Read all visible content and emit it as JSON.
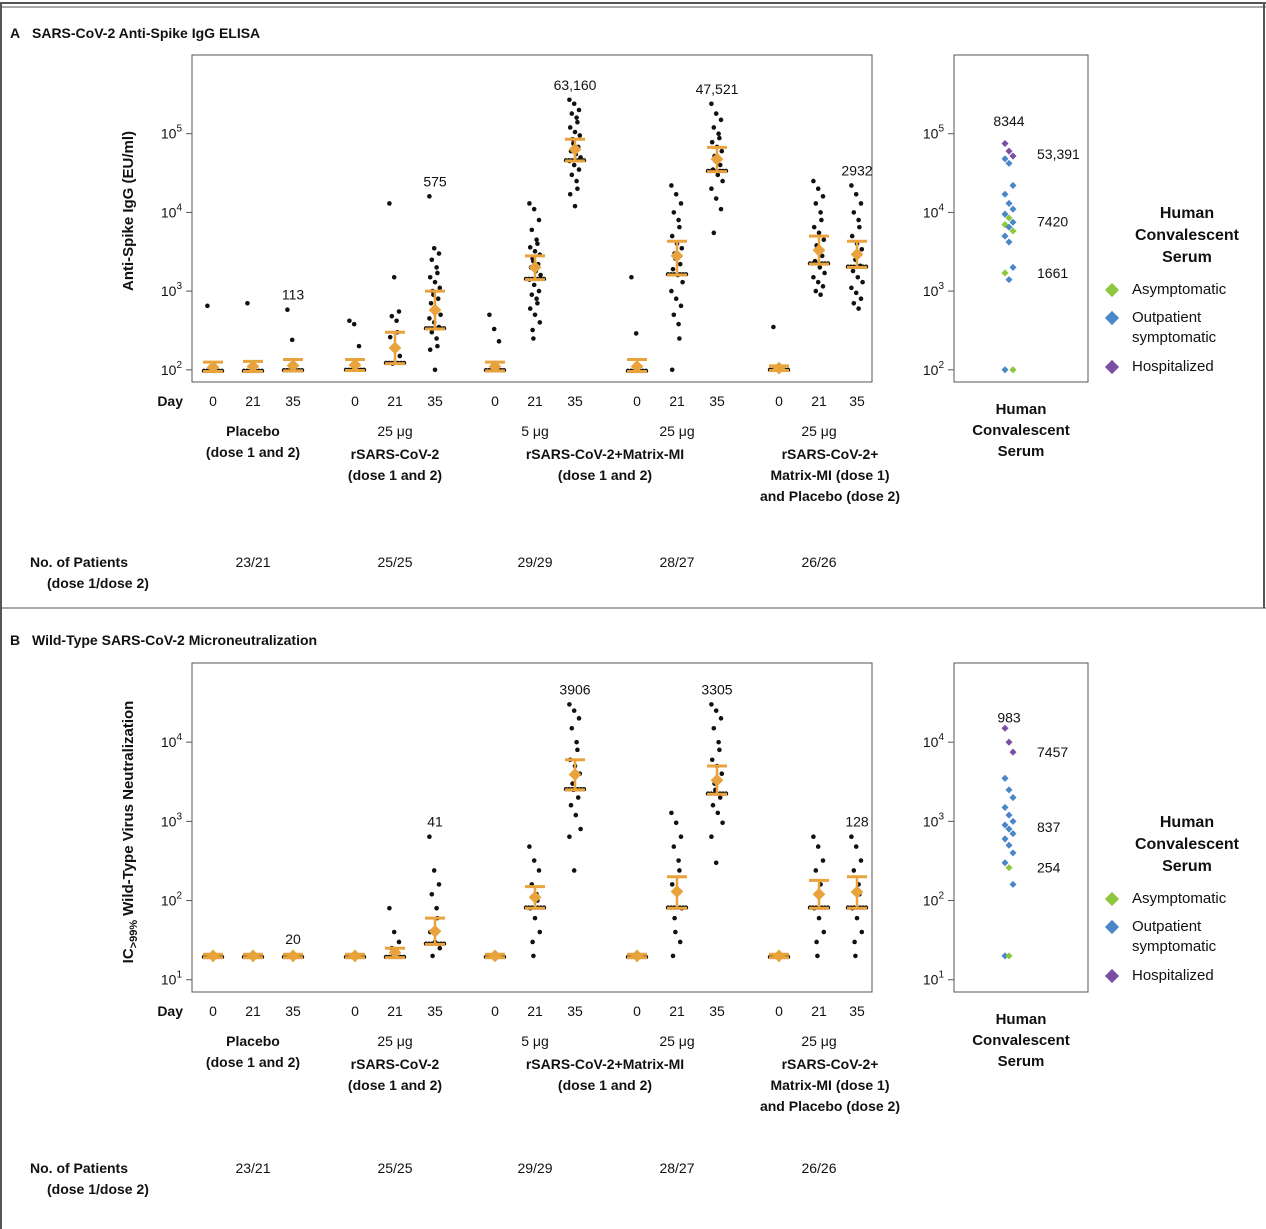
{
  "panels": {
    "A": {
      "letter": "A",
      "title": "SARS-CoV-2 Anti-Spike IgG ELISA",
      "ylabel": "Anti-Spike IgG (EU/ml)"
    },
    "B": {
      "letter": "B",
      "title": "Wild-Type SARS-CoV-2 Microneutralization",
      "ylabel_main": "Wild-Type Virus Neutralization",
      "ylabel_prefix": "IC",
      "ylabel_sub": ">99%"
    }
  },
  "common": {
    "day_label": "Day",
    "patients_label_1": "No. of Patients",
    "patients_label_2": "(dose 1/dose 2)",
    "groups": [
      {
        "dose": "",
        "name": [
          "Placebo",
          "(dose 1 and 2)"
        ],
        "patients": "23/21"
      },
      {
        "dose": "25 μg",
        "name": [
          "rSARS-CoV-2",
          "(dose 1 and 2)"
        ],
        "patients": "25/25"
      },
      {
        "dose": "5 μg",
        "name": [
          "rSARS-CoV-2+Matrix-MI",
          "(dose 1 and 2)"
        ],
        "patients": "29/29"
      },
      {
        "dose": "25 μg",
        "name": [
          "",
          ""
        ],
        "patients": "28/27"
      },
      {
        "dose": "25 μg",
        "name": [
          "rSARS-CoV-2+",
          "Matrix-MI (dose 1)",
          "and Placebo (dose 2)"
        ],
        "patients": "26/26"
      }
    ],
    "days": [
      "0",
      "21",
      "35"
    ],
    "hcs_xlabel": [
      "Human",
      "Convalescent",
      "Serum"
    ],
    "legend_title": [
      "Human",
      "Convalescent",
      "Serum"
    ],
    "legend": [
      {
        "label": [
          "Asymptomatic"
        ],
        "color": "#8dc63f"
      },
      {
        "label": [
          "Outpatient",
          "symptomatic"
        ],
        "color": "#4a86c8"
      },
      {
        "label": [
          "Hospitalized"
        ],
        "color": "#7b4fa3"
      }
    ],
    "colors": {
      "points": "#111111",
      "errorbar": "#e8a33d",
      "frame": "#555555"
    }
  },
  "chart_data": [
    {
      "type": "scatter",
      "title": "SARS-CoV-2 Anti-Spike IgG ELISA",
      "ylabel": "Anti-Spike IgG (EU/ml)",
      "yscale": "log",
      "ylim": [
        70,
        1000000
      ],
      "yticks": [
        {
          "v": 100,
          "b": "10",
          "e": "2"
        },
        {
          "v": 1000,
          "b": "10",
          "e": "3"
        },
        {
          "v": 10000,
          "b": "10",
          "e": "4"
        },
        {
          "v": 100000,
          "b": "10",
          "e": "5"
        }
      ],
      "series": [
        {
          "group": "Placebo",
          "day": "0",
          "gmt": 108,
          "ci": [
            95,
            125
          ],
          "label": "",
          "outliers": [
            650
          ]
        },
        {
          "group": "Placebo",
          "day": "21",
          "gmt": 110,
          "ci": [
            95,
            128
          ],
          "label": "",
          "outliers": [
            700
          ]
        },
        {
          "group": "Placebo",
          "day": "35",
          "gmt": 113,
          "ci": [
            97,
            135
          ],
          "label": "113",
          "outliers": [
            580,
            240
          ]
        },
        {
          "group": "rSARS-CoV-2",
          "day": "0",
          "gmt": 115,
          "ci": [
            98,
            135
          ],
          "label": "",
          "outliers": [
            420,
            380,
            200
          ]
        },
        {
          "group": "rSARS-CoV-2",
          "day": "21",
          "gmt": 190,
          "ci": [
            120,
            300
          ],
          "label": "",
          "outliers": [
            13000,
            1500,
            550,
            480,
            420,
            300,
            260,
            200,
            150,
            120
          ]
        },
        {
          "group": "rSARS-CoV-2",
          "day": "35",
          "gmt": 575,
          "ci": [
            330,
            1000
          ],
          "label": "575",
          "outliers": [
            16000,
            3500,
            3000,
            2500,
            2000,
            1700,
            1500,
            1300,
            1100,
            1000,
            900,
            800,
            700,
            600,
            500,
            450,
            400,
            350,
            300,
            250,
            200,
            180,
            100
          ]
        },
        {
          "group": "rSARS-CoV-2+Matrix-MI 5 μg",
          "day": "0",
          "gmt": 110,
          "ci": [
            97,
            125
          ],
          "label": "",
          "outliers": [
            500,
            330,
            230
          ]
        },
        {
          "group": "rSARS-CoV-2+Matrix-MI 5 μg",
          "day": "21",
          "gmt": 2000,
          "ci": [
            1400,
            2800
          ],
          "label": "",
          "outliers": [
            13000,
            11000,
            8000,
            6000,
            4500,
            4000,
            3600,
            3200,
            2900,
            2600,
            2400,
            2200,
            2000,
            1800,
            1600,
            1400,
            1200,
            1000,
            900,
            800,
            700,
            600,
            500,
            400,
            320,
            250
          ]
        },
        {
          "group": "rSARS-CoV-2+Matrix-MI 5 μg",
          "day": "35",
          "gmt": 63160,
          "ci": [
            45000,
            85000
          ],
          "label": "63,160",
          "outliers": [
            270000,
            240000,
            200000,
            180000,
            160000,
            140000,
            120000,
            105000,
            95000,
            85000,
            75000,
            68000,
            60000,
            55000,
            50000,
            45000,
            40000,
            35000,
            30000,
            25000,
            20000,
            17000,
            12000
          ]
        },
        {
          "group": "rSARS-CoV-2+Matrix-MI 25 μg",
          "day": "0",
          "gmt": 110,
          "ci": [
            95,
            135
          ],
          "label": "",
          "outliers": [
            1500,
            290
          ]
        },
        {
          "group": "rSARS-CoV-2+Matrix-MI 25 μg",
          "day": "21",
          "gmt": 2800,
          "ci": [
            1600,
            4300
          ],
          "label": "",
          "outliers": [
            22000,
            17000,
            13000,
            10000,
            8000,
            6500,
            5000,
            4000,
            3500,
            3000,
            2600,
            2200,
            1900,
            1600,
            1300,
            1000,
            800,
            650,
            500,
            380,
            250,
            100
          ]
        },
        {
          "group": "rSARS-CoV-2+Matrix-MI 25 μg",
          "day": "35",
          "gmt": 47521,
          "ci": [
            33000,
            67000
          ],
          "label": "47,521",
          "outliers": [
            240000,
            180000,
            150000,
            120000,
            100000,
            88000,
            78000,
            68000,
            60000,
            52000,
            45000,
            40000,
            35000,
            30000,
            25000,
            20000,
            15000,
            11000,
            5500
          ]
        },
        {
          "group": "rSARS-CoV-2+Matrix-MI/Placebo",
          "day": "0",
          "gmt": 105,
          "ci": [
            98,
            112
          ],
          "label": "",
          "outliers": [
            350
          ]
        },
        {
          "group": "rSARS-CoV-2+Matrix-MI/Placebo",
          "day": "21",
          "gmt": 3300,
          "ci": [
            2200,
            5000
          ],
          "label": "",
          "outliers": [
            25000,
            20000,
            16000,
            13000,
            10000,
            8000,
            6500,
            5500,
            4500,
            3800,
            3200,
            2800,
            2400,
            2000,
            1700,
            1500,
            1300,
            1150,
            1000,
            900
          ]
        },
        {
          "group": "rSARS-CoV-2+Matrix-MI/Placebo",
          "day": "35",
          "gmt": 2932,
          "ci": [
            2000,
            4300
          ],
          "label": "2932",
          "outliers": [
            22000,
            17000,
            13000,
            10000,
            8000,
            6500,
            5000,
            4000,
            3400,
            2900,
            2500,
            2100,
            1800,
            1500,
            1300,
            1100,
            950,
            800,
            700,
            600
          ]
        }
      ],
      "convalescent": {
        "labels": [
          {
            "text": "8344",
            "v": 140000,
            "pos": "top"
          },
          {
            "text": "53,391",
            "v": 55000,
            "pos": "right"
          },
          {
            "text": "7420",
            "v": 7700,
            "pos": "right"
          },
          {
            "text": "1661",
            "v": 1700,
            "pos": "right"
          }
        ],
        "points": [
          {
            "v": 75000,
            "c": "purple"
          },
          {
            "v": 60000,
            "c": "purple"
          },
          {
            "v": 52000,
            "c": "purple"
          },
          {
            "v": 48000,
            "c": "blue"
          },
          {
            "v": 42000,
            "c": "blue"
          },
          {
            "v": 22000,
            "c": "blue"
          },
          {
            "v": 17000,
            "c": "blue"
          },
          {
            "v": 13000,
            "c": "blue"
          },
          {
            "v": 11000,
            "c": "blue"
          },
          {
            "v": 9500,
            "c": "blue"
          },
          {
            "v": 8500,
            "c": "green"
          },
          {
            "v": 7500,
            "c": "blue"
          },
          {
            "v": 7000,
            "c": "green"
          },
          {
            "v": 6500,
            "c": "blue"
          },
          {
            "v": 5800,
            "c": "green"
          },
          {
            "v": 5000,
            "c": "blue"
          },
          {
            "v": 4200,
            "c": "blue"
          },
          {
            "v": 2000,
            "c": "blue"
          },
          {
            "v": 1700,
            "c": "green"
          },
          {
            "v": 1400,
            "c": "blue"
          },
          {
            "v": 100,
            "c": "green"
          },
          {
            "v": 100,
            "c": "blue"
          }
        ]
      }
    },
    {
      "type": "scatter",
      "title": "Wild-Type SARS-CoV-2 Microneutralization",
      "ylabel": "IC>99% Wild-Type Virus Neutralization",
      "yscale": "log",
      "ylim": [
        7,
        100000
      ],
      "yticks": [
        {
          "v": 10,
          "b": "10",
          "e": "1"
        },
        {
          "v": 100,
          "b": "10",
          "e": "2"
        },
        {
          "v": 1000,
          "b": "10",
          "e": "3"
        },
        {
          "v": 10000,
          "b": "10",
          "e": "4"
        }
      ],
      "series": [
        {
          "group": "Placebo",
          "day": "0",
          "gmt": 20,
          "ci": [
            19,
            21
          ],
          "label": "",
          "outliers": []
        },
        {
          "group": "Placebo",
          "day": "21",
          "gmt": 20,
          "ci": [
            19,
            21
          ],
          "label": "",
          "outliers": []
        },
        {
          "group": "Placebo",
          "day": "35",
          "gmt": 20,
          "ci": [
            19,
            21
          ],
          "label": "20",
          "outliers": []
        },
        {
          "group": "rSARS-CoV-2",
          "day": "0",
          "gmt": 20,
          "ci": [
            19,
            21
          ],
          "label": "",
          "outliers": []
        },
        {
          "group": "rSARS-CoV-2",
          "day": "21",
          "gmt": 22,
          "ci": [
            19,
            25
          ],
          "label": "",
          "outliers": [
            80,
            40,
            30,
            25,
            20
          ]
        },
        {
          "group": "rSARS-CoV-2",
          "day": "35",
          "gmt": 41,
          "ci": [
            28,
            60
          ],
          "label": "41",
          "outliers": [
            640,
            240,
            160,
            120,
            80,
            60,
            40,
            30,
            25,
            20
          ]
        },
        {
          "group": "rSARS-CoV-2+Matrix-MI 5 μg",
          "day": "0",
          "gmt": 20,
          "ci": [
            19,
            21
          ],
          "label": "",
          "outliers": []
        },
        {
          "group": "rSARS-CoV-2+Matrix-MI 5 μg",
          "day": "21",
          "gmt": 110,
          "ci": [
            80,
            150
          ],
          "label": "",
          "outliers": [
            480,
            320,
            240,
            160,
            120,
            100,
            80,
            60,
            40,
            30,
            20
          ]
        },
        {
          "group": "rSARS-CoV-2+Matrix-MI 5 μg",
          "day": "35",
          "gmt": 3906,
          "ci": [
            2500,
            6000
          ],
          "label": "3906",
          "outliers": [
            30000,
            25000,
            20000,
            15000,
            10000,
            8000,
            6000,
            5000,
            4000,
            3000,
            2500,
            2000,
            1600,
            1200,
            800,
            640,
            240
          ]
        },
        {
          "group": "rSARS-CoV-2+Matrix-MI 25 μg",
          "day": "0",
          "gmt": 20,
          "ci": [
            19,
            21
          ],
          "label": "",
          "outliers": []
        },
        {
          "group": "rSARS-CoV-2+Matrix-MI 25 μg",
          "day": "21",
          "gmt": 130,
          "ci": [
            80,
            200
          ],
          "label": "",
          "outliers": [
            1280,
            960,
            640,
            480,
            320,
            240,
            160,
            120,
            80,
            60,
            40,
            30,
            20
          ]
        },
        {
          "group": "rSARS-CoV-2+Matrix-MI 25 μg",
          "day": "35",
          "gmt": 3305,
          "ci": [
            2200,
            5000
          ],
          "label": "3305",
          "outliers": [
            30000,
            25000,
            20000,
            15000,
            10000,
            8000,
            6000,
            5000,
            4000,
            3000,
            2500,
            2000,
            1600,
            1280,
            960,
            640,
            300
          ]
        },
        {
          "group": "rSARS-CoV-2+Matrix-MI/Placebo",
          "day": "0",
          "gmt": 20,
          "ci": [
            19,
            21
          ],
          "label": "",
          "outliers": []
        },
        {
          "group": "rSARS-CoV-2+Matrix-MI/Placebo",
          "day": "21",
          "gmt": 120,
          "ci": [
            80,
            180
          ],
          "label": "",
          "outliers": [
            640,
            480,
            320,
            240,
            160,
            120,
            80,
            60,
            40,
            30,
            20
          ]
        },
        {
          "group": "rSARS-CoV-2+Matrix-MI/Placebo",
          "day": "35",
          "gmt": 128,
          "ci": [
            80,
            200
          ],
          "label": "128",
          "outliers": [
            640,
            480,
            320,
            240,
            160,
            120,
            80,
            60,
            40,
            30,
            20
          ]
        }
      ],
      "convalescent": {
        "labels": [
          {
            "text": "983",
            "v": 20000,
            "pos": "top"
          },
          {
            "text": "7457",
            "v": 7500,
            "pos": "right"
          },
          {
            "text": "837",
            "v": 850,
            "pos": "right"
          },
          {
            "text": "254",
            "v": 260,
            "pos": "right"
          }
        ],
        "points": [
          {
            "v": 15000,
            "c": "purple"
          },
          {
            "v": 10000,
            "c": "purple"
          },
          {
            "v": 7500,
            "c": "purple"
          },
          {
            "v": 3500,
            "c": "blue"
          },
          {
            "v": 2500,
            "c": "blue"
          },
          {
            "v": 2000,
            "c": "blue"
          },
          {
            "v": 1500,
            "c": "blue"
          },
          {
            "v": 1200,
            "c": "blue"
          },
          {
            "v": 1000,
            "c": "blue"
          },
          {
            "v": 900,
            "c": "blue"
          },
          {
            "v": 800,
            "c": "blue"
          },
          {
            "v": 700,
            "c": "blue"
          },
          {
            "v": 600,
            "c": "blue"
          },
          {
            "v": 500,
            "c": "blue"
          },
          {
            "v": 400,
            "c": "blue"
          },
          {
            "v": 300,
            "c": "blue"
          },
          {
            "v": 260,
            "c": "green"
          },
          {
            "v": 160,
            "c": "blue"
          },
          {
            "v": 20,
            "c": "blue"
          },
          {
            "v": 20,
            "c": "green"
          }
        ]
      }
    }
  ]
}
